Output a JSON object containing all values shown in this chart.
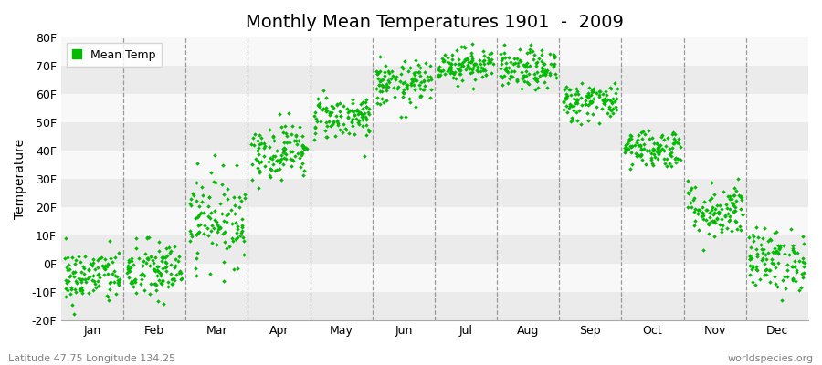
{
  "title": "Monthly Mean Temperatures 1901  -  2009",
  "ylabel": "Temperature",
  "xlabel_labels": [
    "Jan",
    "Feb",
    "Mar",
    "Apr",
    "May",
    "Jun",
    "Jul",
    "Aug",
    "Sep",
    "Oct",
    "Nov",
    "Dec"
  ],
  "legend_label": "Mean Temp",
  "dot_color": "#00BB00",
  "bg_color": "#FFFFFF",
  "band_color_light": "#EBEBEB",
  "band_color_dark": "#F8F8F8",
  "ylim": [
    -20,
    80
  ],
  "yticks": [
    -20,
    -10,
    0,
    10,
    20,
    30,
    40,
    50,
    60,
    70,
    80
  ],
  "ytick_labels": [
    "-20F",
    "-10F",
    "0F",
    "10F",
    "20F",
    "30F",
    "40F",
    "50F",
    "60F",
    "70F",
    "80F"
  ],
  "footer_left": "Latitude 47.75 Longitude 134.25",
  "footer_right": "worldspecies.org",
  "num_years": 109,
  "monthly_means": [
    -4.5,
    -2.5,
    16.0,
    40.0,
    52.0,
    63.5,
    70.5,
    68.5,
    57.5,
    41.0,
    19.0,
    1.5
  ],
  "monthly_stds": [
    5.0,
    5.5,
    8.0,
    5.0,
    4.0,
    4.0,
    3.0,
    3.5,
    3.5,
    3.5,
    5.0,
    5.5
  ],
  "dot_size": 5,
  "title_fontsize": 14,
  "axis_fontsize": 10,
  "tick_fontsize": 9,
  "footer_fontsize": 8
}
